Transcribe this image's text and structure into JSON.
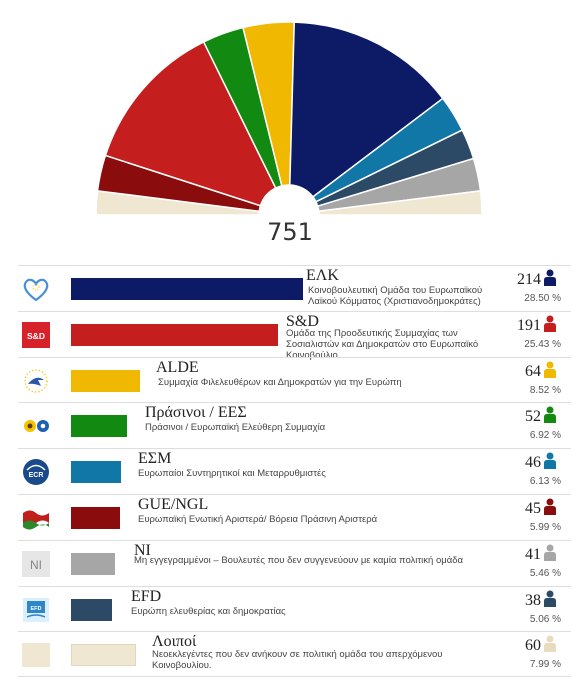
{
  "chart_data": {
    "type": "pie",
    "total_seats": 751,
    "total_label": "751",
    "series": [
      {
        "abbr": "ΕΛΚ",
        "name": "Κοινοβουλευτική Ομάδα του Ευρωπαϊκού Λαϊκού Κόμματος (Χριστιανοδημοκράτες)",
        "seats": 214,
        "seats_label": "214",
        "percent_label": "28.50 %",
        "color": "#0d1a66",
        "logo": "epp-heart-logo"
      },
      {
        "abbr": "S&D",
        "name": "Ομάδα της Προοδευτικής Συμμαχίας των Σοσιαλιστών και Δημοκρατών στο Ευρωπαϊκό Κοινοβούλιο",
        "seats": 191,
        "seats_label": "191",
        "percent_label": "25.43 %",
        "color": "#c41e1e",
        "logo": "sd-logo",
        "logo_text": "S&D"
      },
      {
        "abbr": "ALDE",
        "name": "Συμμαχία Φιλελευθέρων και Δημοκρατών για την Ευρώπη",
        "seats": 64,
        "seats_label": "64",
        "percent_label": "8.52 %",
        "color": "#f0b800",
        "logo": "alde-logo"
      },
      {
        "abbr": "Πράσινοι / ΕΕΣ",
        "name": "Πράσινοι / Ευρωπαϊκή Ελεύθερη Συμμαχία",
        "seats": 52,
        "seats_label": "52",
        "percent_label": "6.92 %",
        "color": "#128a12",
        "logo": "greens-efa-logo"
      },
      {
        "abbr": "ΕΣΜ",
        "name": "Ευρωπαίοι Συντηρητικοί και Μεταρρυθμιστές",
        "seats": 46,
        "seats_label": "46",
        "percent_label": "6.13 %",
        "color": "#1177a6",
        "logo": "ecr-logo",
        "logo_text": "ECR"
      },
      {
        "abbr": "GUE/NGL",
        "name": "Ευρωπαϊκή Ενωτική Αριστερά/ Βόρεια Πράσινη Αριστερά",
        "seats": 45,
        "seats_label": "45",
        "percent_label": "5.99 %",
        "color": "#8a0c0c",
        "logo": "gue-ngl-logo"
      },
      {
        "abbr": "NI",
        "name": "Μη εγγεγραμμένοι – Βουλευτές που δεν συγγενεύουν με καμία πολιτική ομάδα",
        "seats": 41,
        "seats_label": "41",
        "percent_label": "5.46 %",
        "color": "#a6a6a6",
        "logo": "ni-logo",
        "logo_text": "NI"
      },
      {
        "abbr": "EFD",
        "name": "Ευρώπη ελευθερίας και δημοκρατίας",
        "seats": 38,
        "seats_label": "38",
        "percent_label": "5.06 %",
        "color": "#2c4a66",
        "logo": "efd-logo",
        "logo_text": "EFD"
      },
      {
        "abbr": "Λοιποί",
        "name": "Νεοεκλεγέντες που δεν ανήκουν σε πολιτική ομάδα του απερχόμενου Κοινοβουλίου.",
        "seats": 60,
        "seats_label": "60",
        "percent_label": "7.99 %",
        "color": "#efe7d1",
        "logo": "others-logo"
      }
    ],
    "hemicycle_order_left_to_right": [
      "Λοιποί",
      "GUE/NGL",
      "S&D",
      "Πράσινοι / ΕΕΣ",
      "ALDE",
      "ΕΛΚ",
      "ΕΣΜ",
      "EFD",
      "NI",
      "Λοιποί"
    ]
  }
}
